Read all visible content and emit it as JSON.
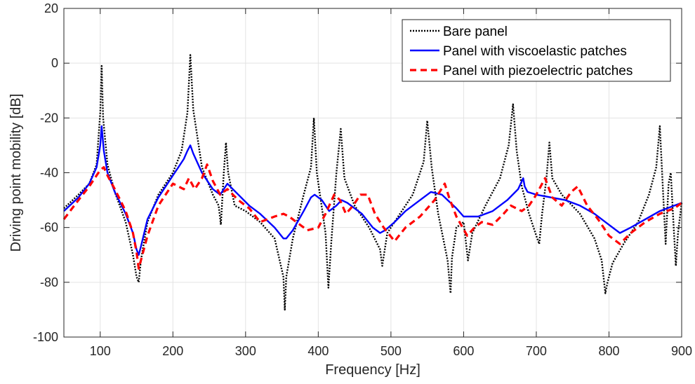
{
  "chart_data": {
    "type": "line",
    "title": "",
    "xlabel": "Frequency [Hz]",
    "ylabel": "Driving point mobility [dB]",
    "xlim": [
      50,
      900
    ],
    "ylim": [
      -100,
      20
    ],
    "xticks": [
      100,
      200,
      300,
      400,
      500,
      600,
      700,
      800,
      900
    ],
    "yticks": [
      -100,
      -80,
      -60,
      -40,
      -20,
      0,
      20
    ],
    "xtick_labels": [
      "100",
      "200",
      "300",
      "400",
      "500",
      "600",
      "700",
      "800",
      "900"
    ],
    "ytick_labels": [
      "-100",
      "-80",
      "-60",
      "-40",
      "-20",
      "0",
      "20"
    ],
    "grid": true,
    "legend_position": "top-right",
    "series": [
      {
        "name": "Bare panel",
        "color": "#000000",
        "style": "dotted",
        "x": [
          50,
          70,
          85,
          95,
          100,
          102,
          104,
          110,
          120,
          135,
          145,
          150,
          153,
          156,
          165,
          180,
          200,
          212,
          220,
          224,
          228,
          240,
          255,
          263,
          266,
          270,
          273,
          276,
          285,
          300,
          320,
          340,
          352,
          354,
          356,
          365,
          380,
          390,
          394,
          398,
          410,
          414,
          418,
          425,
          431,
          436,
          450,
          470,
          485,
          488,
          495,
          510,
          530,
          545,
          550,
          556,
          565,
          578,
          582,
          584,
          590,
          600,
          606,
          612,
          630,
          650,
          662,
          668,
          673,
          680,
          690,
          700,
          704,
          708,
          714,
          718,
          722,
          735,
          760,
          780,
          790,
          795,
          798,
          805,
          820,
          840,
          855,
          865,
          870,
          874,
          878,
          882,
          885,
          888,
          892,
          895,
          900
        ],
        "y": [
          -53,
          -48,
          -44,
          -37,
          -18,
          -1,
          -20,
          -37,
          -47,
          -58,
          -70,
          -78,
          -80,
          -72,
          -58,
          -48,
          -40,
          -32,
          -18,
          3,
          -17,
          -38,
          -48,
          -52,
          -59,
          -40,
          -29,
          -40,
          -52,
          -54,
          -58,
          -64,
          -78,
          -90,
          -78,
          -64,
          -48,
          -38,
          -20,
          -40,
          -62,
          -82,
          -65,
          -40,
          -24,
          -42,
          -52,
          -60,
          -68,
          -74,
          -62,
          -56,
          -48,
          -36,
          -21,
          -38,
          -55,
          -72,
          -84,
          -71,
          -60,
          -58,
          -72,
          -62,
          -52,
          -42,
          -30,
          -15,
          -32,
          -45,
          -55,
          -63,
          -66,
          -55,
          -42,
          -29,
          -42,
          -48,
          -55,
          -64,
          -72,
          -84,
          -80,
          -73,
          -66,
          -58,
          -48,
          -38,
          -23,
          -45,
          -66,
          -44,
          -40,
          -55,
          -74,
          -62,
          -51
        ]
      },
      {
        "name": "Panel with viscoelastic patches",
        "color": "#0000ff",
        "style": "solid",
        "x": [
          50,
          70,
          85,
          95,
          100,
          102,
          105,
          110,
          120,
          135,
          145,
          150,
          153,
          156,
          165,
          180,
          200,
          215,
          220,
          224,
          228,
          240,
          255,
          265,
          270,
          275,
          290,
          305,
          320,
          340,
          352,
          356,
          365,
          380,
          390,
          395,
          405,
          415,
          425,
          432,
          440,
          460,
          475,
          485,
          492,
          505,
          520,
          540,
          555,
          570,
          590,
          600,
          620,
          640,
          660,
          675,
          682,
          684,
          688,
          700,
          720,
          740,
          760,
          780,
          800,
          815,
          830,
          850,
          870,
          890,
          900
        ],
        "y": [
          -54,
          -49,
          -44,
          -38,
          -30,
          -23,
          -32,
          -40,
          -47,
          -55,
          -62,
          -68,
          -70,
          -67,
          -57,
          -49,
          -41,
          -35,
          -32,
          -30,
          -33,
          -40,
          -46,
          -48,
          -46,
          -44,
          -48,
          -52,
          -55,
          -60,
          -64,
          -64,
          -61,
          -54,
          -49,
          -48,
          -50,
          -54,
          -52,
          -50,
          -51,
          -55,
          -60,
          -62,
          -61,
          -58,
          -54,
          -50,
          -47,
          -48,
          -53,
          -56,
          -56,
          -54,
          -50,
          -46,
          -42,
          -45,
          -47,
          -48,
          -49,
          -50,
          -52,
          -55,
          -59,
          -62,
          -60,
          -57,
          -54,
          -52,
          -51
        ]
      },
      {
        "name": "Panel with piezoelectric patches",
        "color": "#ff0000",
        "style": "dashed",
        "x": [
          50,
          70,
          85,
          95,
          100,
          105,
          110,
          120,
          135,
          145,
          150,
          153,
          156,
          165,
          180,
          200,
          215,
          222,
          230,
          240,
          247,
          255,
          265,
          275,
          290,
          305,
          320,
          340,
          352,
          360,
          370,
          385,
          400,
          410,
          422,
          430,
          438,
          448,
          458,
          468,
          478,
          490,
          505,
          520,
          540,
          560,
          574,
          580,
          590,
          605,
          615,
          625,
          640,
          655,
          665,
          680,
          690,
          700,
          712,
          722,
          735,
          748,
          757,
          770,
          785,
          800,
          815,
          830,
          850,
          870,
          890,
          900
        ],
        "y": [
          -57,
          -50,
          -45,
          -41,
          -39,
          -38,
          -41,
          -46,
          -54,
          -62,
          -69,
          -75,
          -72,
          -63,
          -52,
          -44,
          -46,
          -42,
          -46,
          -42,
          -37,
          -43,
          -48,
          -46,
          -50,
          -53,
          -58,
          -56,
          -55,
          -56,
          -58,
          -61,
          -60,
          -55,
          -48,
          -50,
          -55,
          -52,
          -48,
          -48,
          -55,
          -60,
          -65,
          -60,
          -56,
          -50,
          -44,
          -49,
          -56,
          -63,
          -60,
          -58,
          -59,
          -55,
          -52,
          -54,
          -52,
          -48,
          -42,
          -49,
          -52,
          -47,
          -45,
          -52,
          -57,
          -63,
          -66,
          -62,
          -58,
          -55,
          -53,
          -51
        ]
      }
    ]
  }
}
